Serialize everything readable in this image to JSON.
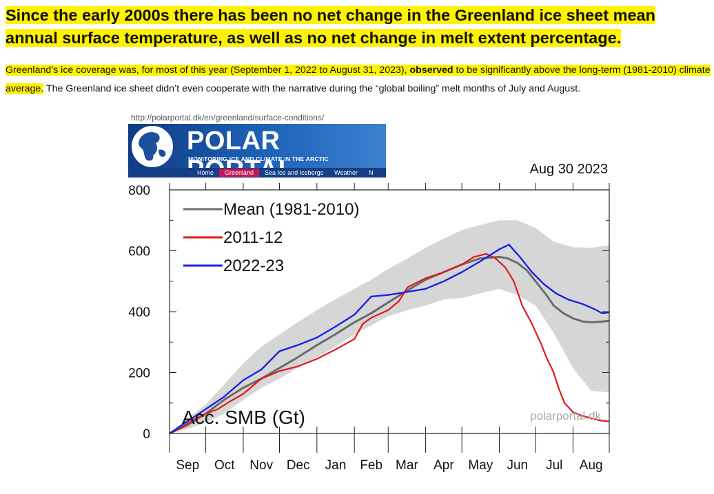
{
  "headline": "Since the early 2000s there has been no net change in the Greenland ice sheet mean annual surface temperature, as well as no net change in melt extent percentage.",
  "paragraph": {
    "hl_part1": "Greenland’s ice coverage was, for most of this year (September 1, 2022 to August 31, 2023), ",
    "hl_link": "observed",
    "hl_part2": " to be significantly above the long-term (1981-2010) climate average.",
    "plain": " The Greenland ice sheet didn’t even cooperate with the narrative during the “global boiling” melt months of July and August."
  },
  "figure": {
    "url": "http://polarportal.dk/en/greenland/surface-conditions/",
    "banner": {
      "title": "POLAR PORTAL",
      "tagline": "MONITORING ICE AND CLIMATE IN THE ARCTIC",
      "nav": [
        "Home",
        "Greenland",
        "Sea Ice and Icebergs",
        "Weather",
        "N"
      ],
      "active_nav": "Greenland"
    },
    "date_label": "Aug 30 2023",
    "ylabel_in_plot": "Acc. SMB (Gt)",
    "watermark": "polarportal.dk"
  },
  "colors": {
    "highlight": "#fff200",
    "mean": "#6b6b6b",
    "series_2011": "#e0191b",
    "series_2022": "#1a22e6",
    "band": "#d6d6d6"
  },
  "chart_data": {
    "type": "line",
    "ylim": [
      0,
      800
    ],
    "yticks": [
      0,
      200,
      400,
      600,
      800
    ],
    "x_tick_labels": [
      "Sep",
      "Oct",
      "Nov",
      "Dec",
      "Jan",
      "Feb",
      "Mar",
      "Apr",
      "May",
      "Jun",
      "Jul",
      "Aug"
    ],
    "x_days": [
      0,
      30,
      61,
      91,
      122,
      153,
      181,
      212,
      242,
      273,
      303,
      334,
      364
    ],
    "legend_placement": "top-left",
    "band": {
      "days": [
        0,
        15,
        30,
        45,
        61,
        76,
        91,
        106,
        122,
        137,
        153,
        167,
        181,
        197,
        212,
        227,
        242,
        257,
        273,
        288,
        303,
        318,
        334,
        349,
        364
      ],
      "lower": [
        0,
        15,
        35,
        65,
        110,
        150,
        180,
        215,
        250,
        285,
        325,
        355,
        385,
        405,
        420,
        440,
        445,
        460,
        475,
        455,
        420,
        330,
        215,
        140,
        135
      ],
      "upper": [
        0,
        50,
        95,
        160,
        230,
        285,
        325,
        365,
        405,
        440,
        475,
        505,
        540,
        575,
        610,
        640,
        668,
        685,
        700,
        700,
        675,
        630,
        612,
        610,
        618
      ]
    },
    "series": [
      {
        "name": "Mean (1981-2010)",
        "days": [
          0,
          15,
          30,
          45,
          61,
          76,
          91,
          106,
          122,
          137,
          153,
          167,
          181,
          197,
          212,
          227,
          242,
          257,
          273,
          280,
          288,
          296,
          303,
          311,
          318,
          326,
          334,
          342,
          349,
          357,
          364
        ],
        "values": [
          0,
          28,
          65,
          110,
          150,
          180,
          215,
          250,
          290,
          325,
          365,
          395,
          430,
          470,
          505,
          530,
          555,
          575,
          580,
          575,
          560,
          535,
          500,
          460,
          420,
          395,
          378,
          368,
          365,
          367,
          370
        ]
      },
      {
        "name": "2011-12",
        "days": [
          0,
          10,
          20,
          30,
          40,
          50,
          61,
          76,
          91,
          106,
          122,
          137,
          153,
          160,
          167,
          181,
          190,
          197,
          212,
          227,
          242,
          252,
          262,
          270,
          278,
          285,
          292,
          300,
          307,
          312,
          318,
          322,
          327,
          334,
          340,
          349,
          357,
          364
        ],
        "values": [
          0,
          20,
          45,
          65,
          80,
          105,
          130,
          180,
          205,
          220,
          245,
          275,
          310,
          360,
          380,
          405,
          435,
          480,
          510,
          530,
          555,
          580,
          590,
          575,
          545,
          500,
          420,
          360,
          300,
          250,
          200,
          150,
          100,
          70,
          60,
          50,
          42,
          40
        ]
      },
      {
        "name": "2022-23",
        "days": [
          0,
          15,
          30,
          45,
          61,
          76,
          91,
          106,
          122,
          137,
          153,
          167,
          181,
          197,
          212,
          227,
          242,
          257,
          273,
          281,
          290,
          300,
          310,
          320,
          330,
          342,
          352,
          358,
          364
        ],
        "values": [
          0,
          40,
          80,
          120,
          175,
          210,
          270,
          290,
          315,
          350,
          390,
          450,
          455,
          465,
          475,
          500,
          530,
          565,
          605,
          620,
          580,
          530,
          490,
          460,
          440,
          425,
          408,
          395,
          398
        ]
      }
    ]
  }
}
